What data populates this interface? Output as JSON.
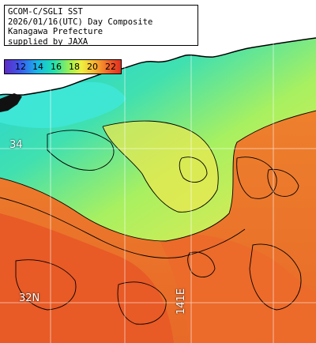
{
  "info": {
    "line1": "GCOM-C/SGLI SST",
    "line2": "2026/01/16(UTC) Day Composite",
    "line3": "Kanagawa Prefecture",
    "line4": "supplied by JAXA"
  },
  "legend": {
    "ticks": [
      "12",
      "14",
      "16",
      "18",
      "20",
      "22"
    ],
    "unit": ""
  },
  "grid_labels": {
    "lat_upper": "34",
    "lat_lower": "32N",
    "lon_label": "141E"
  },
  "colors": {
    "land": "#ffffff",
    "coast_line": "#000000",
    "contour": "#000000",
    "grid": "#ffffff",
    "sst_cold": "#2dc8e8",
    "sst_mid": "#9ef050",
    "sst_warm": "#f4902e",
    "sst_hot": "#e85020"
  }
}
